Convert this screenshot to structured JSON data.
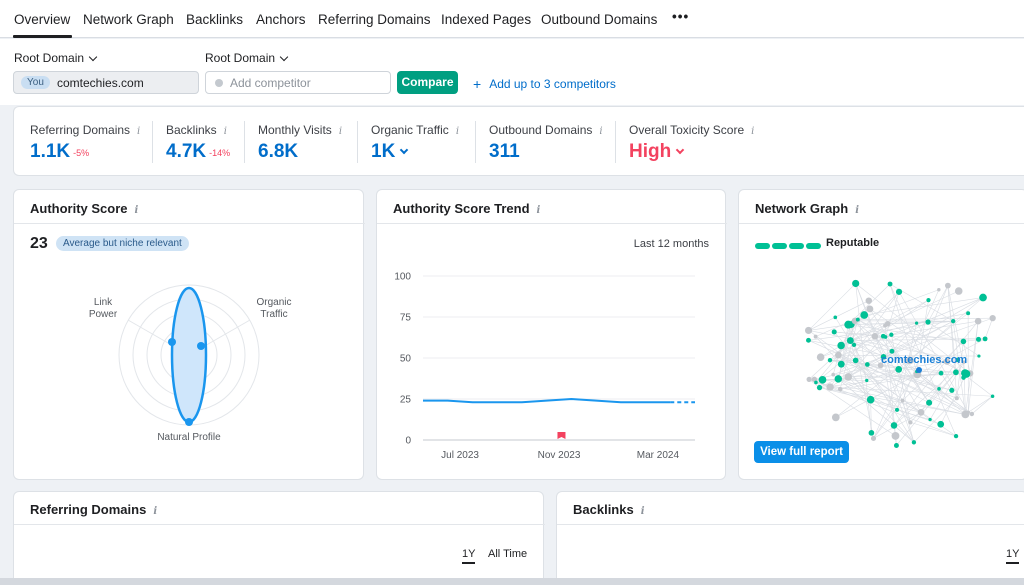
{
  "tabs": [
    "Overview",
    "Network Graph",
    "Backlinks",
    "Anchors",
    "Referring Domains",
    "Indexed Pages",
    "Outbound Domains"
  ],
  "more_icon": "more-dots-icon",
  "root_domain_label_1": "Root Domain",
  "root_domain_label_2": "Root Domain",
  "you_badge": "You",
  "you_domain": "comtechies.com",
  "competitor_placeholder": "Add competitor",
  "compare_label": "Compare",
  "add_competitors_label": "Add up to 3 competitors",
  "stats": [
    {
      "label": "Referring Domains",
      "value": "1.1K",
      "change": "-5%"
    },
    {
      "label": "Backlinks",
      "value": "4.7K",
      "change": "-14%"
    },
    {
      "label": "Monthly Visits",
      "value": "6.8K"
    },
    {
      "label": "Organic Traffic",
      "value": "1K"
    },
    {
      "label": "Outbound Domains",
      "value": "311"
    },
    {
      "label": "Overall Toxicity Score",
      "value": "High"
    }
  ],
  "authority_card": {
    "title": "Authority Score",
    "score": "23",
    "badge": "Average but niche relevant",
    "labels": {
      "link_power": "Link\nPower",
      "organic_traffic": "Organic\nTraffic",
      "natural_profile": "Natural Profile"
    }
  },
  "trend_card": {
    "title": "Authority Score Trend",
    "range": "Last 12 months"
  },
  "network_card": {
    "title": "Network Graph",
    "status": "Reputable",
    "center_label": "comtechies.com",
    "button": "View full report"
  },
  "ref_domains_card": {
    "title": "Referring Domains",
    "range_1y": "1Y",
    "range_all": "All Time"
  },
  "backlinks_card": {
    "title": "Backlinks",
    "range_1y": "1Y"
  },
  "colors": {
    "accent": "#006dca",
    "green": "#009f81",
    "danger": "#f3425f",
    "graph_green": "#00c095"
  },
  "chart_data": {
    "type": "line",
    "title": "Authority Score Trend",
    "x_ticks": [
      "Jul 2023",
      "Nov 2023",
      "Mar 2024"
    ],
    "y_ticks": [
      0,
      25,
      50,
      75,
      100
    ],
    "ylim": [
      0,
      100
    ],
    "series": [
      {
        "values": [
          24,
          24,
          23,
          23,
          23,
          24,
          25,
          24,
          23,
          23,
          23,
          23
        ]
      }
    ],
    "marker": "Nov 2023",
    "grid": true
  }
}
